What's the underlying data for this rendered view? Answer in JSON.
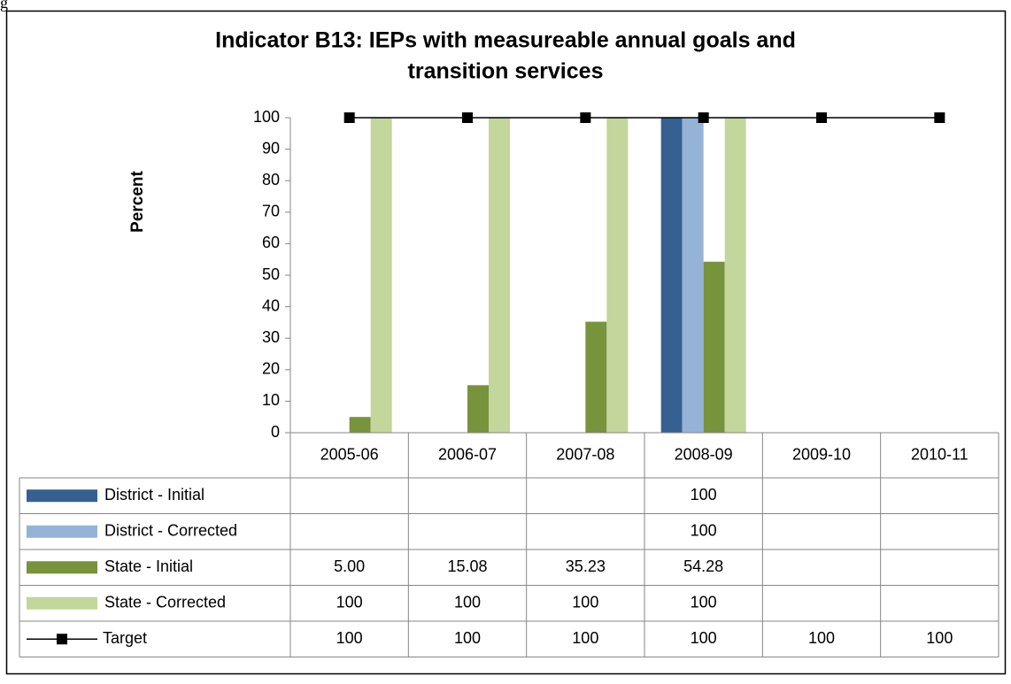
{
  "page_fragment": "g",
  "chart_data": {
    "type": "bar",
    "title": "Indicator B13: IEPs with measureable annual goals and",
    "title_line2": "transition services",
    "y_label": "Percent",
    "categories": [
      "2005-06",
      "2006-07",
      "2007-08",
      "2008-09",
      "2009-10",
      "2010-11"
    ],
    "series": [
      {
        "name": "District - Initial",
        "color": "#376092",
        "type": "bar",
        "values": [
          null,
          null,
          null,
          100,
          null,
          null
        ]
      },
      {
        "name": "District - Corrected",
        "color": "#95b3d7",
        "type": "bar",
        "values": [
          null,
          null,
          null,
          100,
          null,
          null
        ]
      },
      {
        "name": "State - Initial",
        "color": "#77933c",
        "type": "bar",
        "values": [
          5,
          15.08,
          35.23,
          54.28,
          null,
          null
        ],
        "value_labels": [
          "5.00",
          "15.08",
          "35.23",
          "54.28",
          null,
          null
        ]
      },
      {
        "name": "State - Corrected",
        "color": "#c3d69b",
        "type": "bar",
        "values": [
          100,
          100,
          100,
          100,
          null,
          null
        ]
      },
      {
        "name": "Target",
        "color": "#000000",
        "type": "line",
        "values": [
          100,
          100,
          100,
          100,
          100,
          100
        ]
      }
    ],
    "ylim": [
      0,
      100
    ],
    "yticks": [
      0,
      10,
      20,
      30,
      40,
      50,
      60,
      70,
      80,
      90,
      100
    ],
    "grid": false,
    "legend": "table"
  }
}
